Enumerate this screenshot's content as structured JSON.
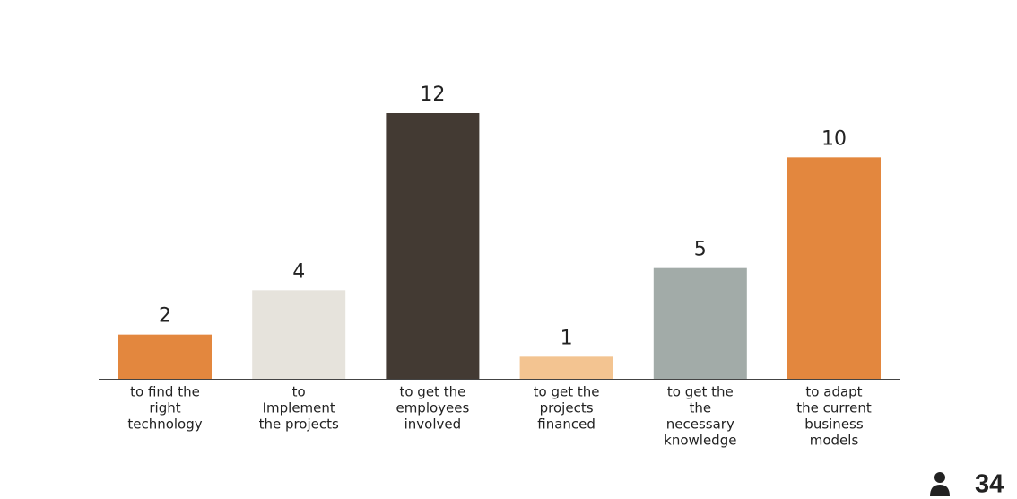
{
  "chart_data": {
    "type": "bar",
    "categories": [
      [
        "to find the",
        "right",
        "technology"
      ],
      [
        "to",
        "Implement",
        "the projects"
      ],
      [
        "to get the",
        "employees",
        "involved"
      ],
      [
        "to get the",
        "projects",
        "financed"
      ],
      [
        "to get the",
        "the",
        "necessary",
        "knowledge"
      ],
      [
        "to adapt",
        "the current",
        "business",
        "models"
      ]
    ],
    "values": [
      2,
      4,
      12,
      1,
      5,
      10
    ],
    "colors": [
      "#e3873e",
      "#e6e3dc",
      "#433a33",
      "#f3c491",
      "#a2aba8",
      "#e3873e"
    ],
    "responses": 34
  }
}
